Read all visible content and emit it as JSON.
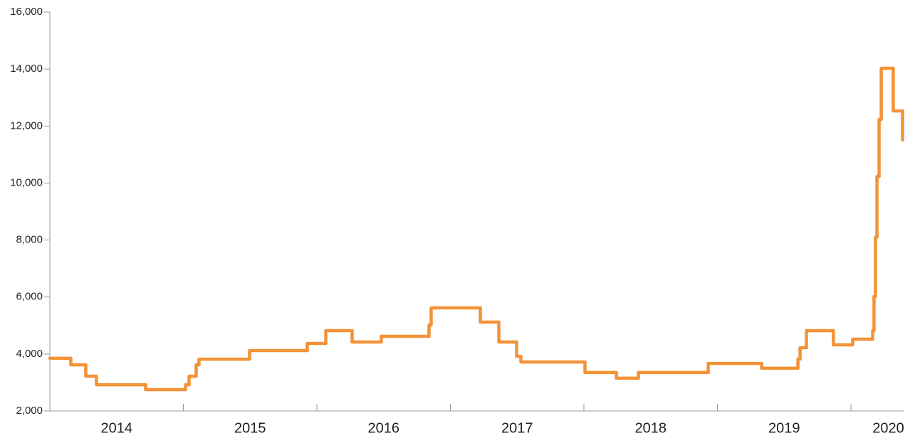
{
  "chart_data": {
    "type": "line",
    "step": "post",
    "color": "#f39237",
    "x": [
      2014.0,
      2014.157,
      2014.269,
      2014.349,
      2014.717,
      2015.016,
      2015.043,
      2015.096,
      2015.117,
      2015.496,
      2015.928,
      2016.067,
      2016.264,
      2016.483,
      2016.84,
      2016.856,
      2017.224,
      2017.363,
      2017.496,
      2017.528,
      2018.008,
      2018.243,
      2018.408,
      2018.931,
      2019.331,
      2019.603,
      2019.619,
      2019.667,
      2019.869,
      2020.013,
      2020.163,
      2020.173,
      2020.184,
      2020.195,
      2020.211,
      2020.227,
      2020.317,
      2020.387
    ],
    "values": [
      3850,
      3620,
      3220,
      2920,
      2750,
      2920,
      3220,
      3620,
      3820,
      4120,
      4370,
      4820,
      4420,
      4620,
      5020,
      5620,
      5120,
      4420,
      3920,
      3720,
      3350,
      3150,
      3350,
      3670,
      3500,
      3820,
      4220,
      4820,
      4320,
      4520,
      4820,
      6020,
      8100,
      10230,
      12230,
      14030,
      12530,
      11510
    ],
    "xlim": [
      2014,
      2020.4
    ],
    "xticks": [
      {
        "value": 2014.5,
        "label": "2014"
      },
      {
        "value": 2015.5,
        "label": "2015"
      },
      {
        "value": 2016.5,
        "label": "2016"
      },
      {
        "value": 2017.5,
        "label": "2017"
      },
      {
        "value": 2018.5,
        "label": "2018"
      },
      {
        "value": 2019.5,
        "label": "2019"
      },
      {
        "value": 2020.28,
        "label": "2020"
      }
    ],
    "x_boundaries": [
      2015,
      2016,
      2017,
      2018,
      2019,
      2020
    ],
    "ylim": [
      2000,
      16000
    ],
    "yticks": [
      {
        "value": 2000,
        "label": "2,000"
      },
      {
        "value": 4000,
        "label": "4,000"
      },
      {
        "value": 6000,
        "label": "6,000"
      },
      {
        "value": 8000,
        "label": "8,000"
      },
      {
        "value": 10000,
        "label": "10,000"
      },
      {
        "value": 12000,
        "label": "12,000"
      },
      {
        "value": 14000,
        "label": "14,000"
      },
      {
        "value": 16000,
        "label": "16,000"
      }
    ],
    "grid": false
  }
}
